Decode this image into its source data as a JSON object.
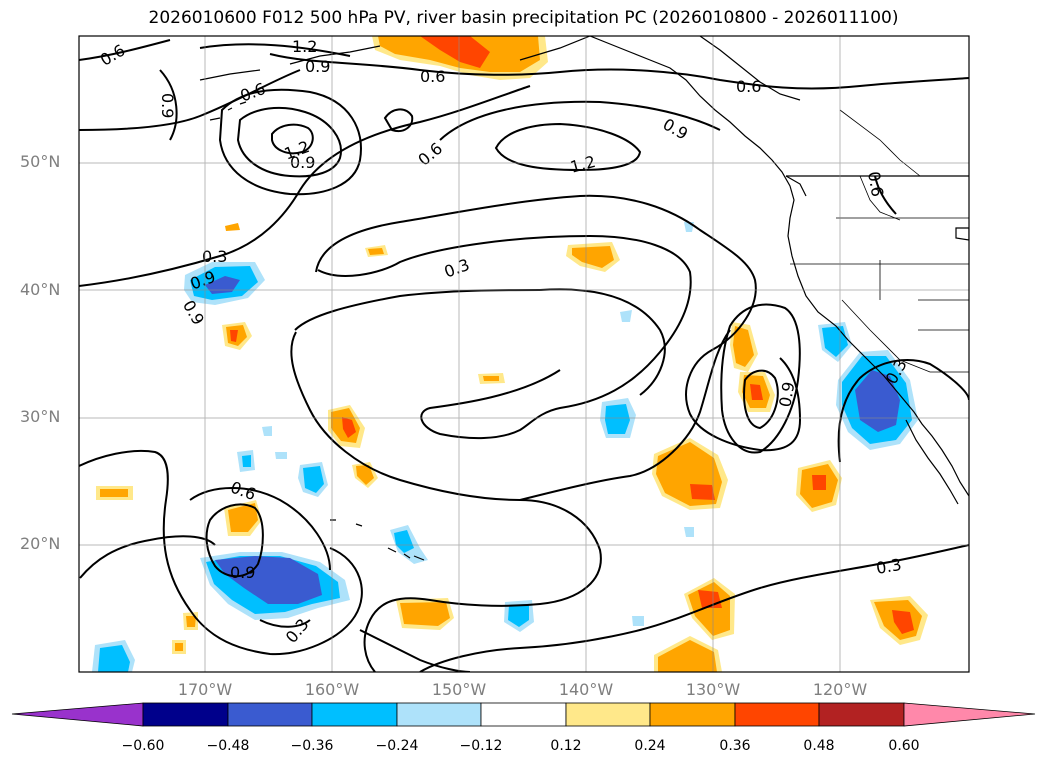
{
  "title": "2026010600 F012 500 hPa PV, river basin precipitation PC (2026010800 - 2026011100)",
  "latitude_labels": [
    "50°N",
    "40°N",
    "30°N",
    "20°N"
  ],
  "longitude_labels": [
    "170°W",
    "160°W",
    "150°W",
    "140°W",
    "130°W",
    "120°W"
  ],
  "colorbar": {
    "tick_labels": [
      "−0.60",
      "−0.48",
      "−0.36",
      "−0.24",
      "−0.12",
      "0.12",
      "0.24",
      "0.36",
      "0.48",
      "0.60"
    ],
    "colors": [
      "#9932cc",
      "#00008b",
      "#3a5bd0",
      "#00bfff",
      "#aee2fa",
      "#ffffff",
      "#ffe88a",
      "#ffa500",
      "#ff4500",
      "#b22222",
      "#ff88aa"
    ]
  },
  "contour_labels": [
    "0.6",
    "1.2",
    "0.9",
    "0.6",
    "0.6",
    "0.9",
    "0.6",
    "1.2",
    "0.9",
    "0.6",
    "1.2",
    "0.9",
    "0.6",
    "0.9",
    "0.3",
    "0.3",
    "0.9",
    "0.6",
    "0.9",
    "0.3",
    "0.3",
    "0.9",
    "0.3"
  ]
}
